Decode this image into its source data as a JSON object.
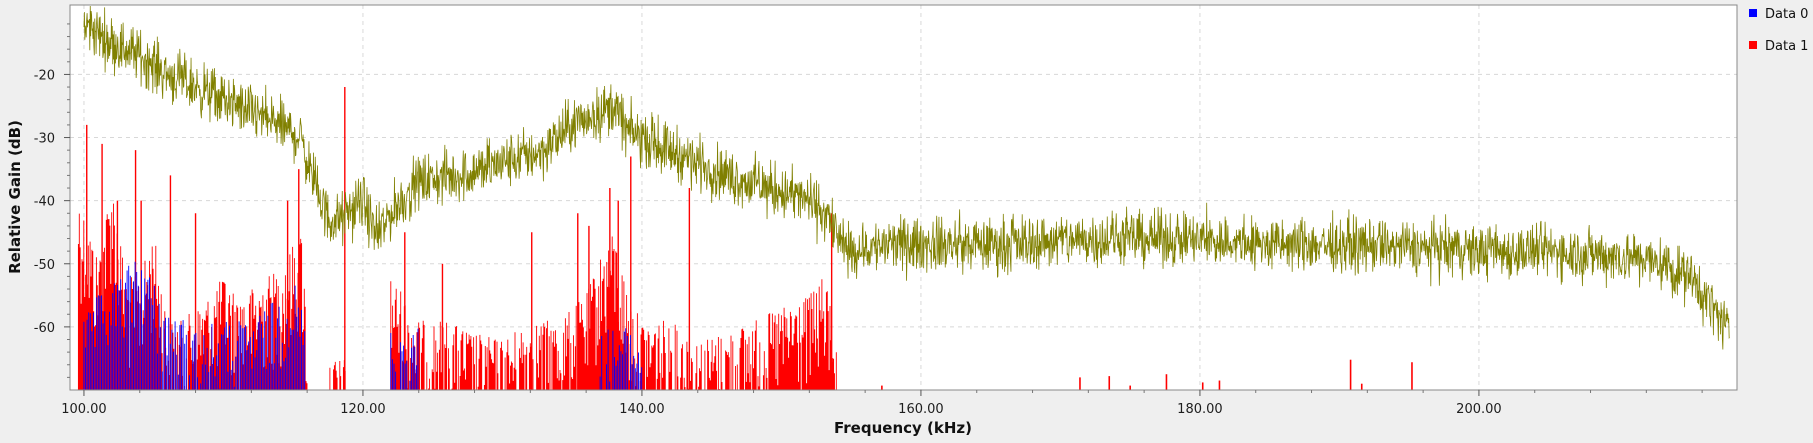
{
  "chart_data": {
    "type": "line",
    "title": "",
    "xlabel": "Frequency (kHz)",
    "ylabel": "Relative Gain (dB)",
    "xlim": [
      99.0,
      218.5
    ],
    "ylim": [
      -70.0,
      -9.0
    ],
    "x_ticks": [
      100,
      120,
      140,
      160,
      180,
      200
    ],
    "x_tick_labels": [
      "100.00",
      "120.00",
      "140.00",
      "160.00",
      "180.00",
      "200.00"
    ],
    "y_ticks": [
      -20,
      -30,
      -40,
      -50,
      -60
    ],
    "y_tick_labels": [
      "-20",
      "-30",
      "-40",
      "-50",
      "-60"
    ],
    "grid": true,
    "legend_position": "top-right, outside plot",
    "noise_amplitude_note": "traces are dense noisy spectra; envelopes below are read from the plot",
    "series": [
      {
        "name": "Data 0",
        "color": "#0000ff",
        "style": "sparse spikes above floor",
        "segments": [
          [
            100.0,
            116.0
          ],
          [
            122.0,
            124.0
          ],
          [
            137.0,
            140.0
          ]
        ],
        "envelope": {
          "x": [
            100.0,
            101.0,
            102.0,
            103.0,
            104.0,
            105.0,
            106.0,
            108.0,
            110.0,
            112.0,
            114.0,
            115.0,
            116.0
          ],
          "y": [
            -62,
            -58,
            -56,
            -54,
            -50,
            -56,
            -60,
            -63,
            -62,
            -62,
            -58,
            -55,
            -63
          ]
        }
      },
      {
        "name": "Data 1",
        "color": "#ff0000",
        "style": "dense spikes above floor",
        "segments": [
          [
            99.6,
            116.0
          ],
          [
            117.5,
            119.0
          ],
          [
            122.0,
            154.0
          ]
        ],
        "envelope": {
          "x": [
            99.6,
            100.0,
            101.0,
            102.0,
            103.0,
            104.0,
            105.0,
            106.0,
            107.0,
            108.0,
            109.0,
            110.0,
            111.0,
            112.0,
            113.0,
            114.0,
            115.0,
            115.6,
            116.0,
            117.5,
            119.0,
            122.0,
            123.0,
            124.0,
            126.0,
            128.0,
            130.0,
            132.0,
            134.0,
            135.0,
            136.0,
            137.0,
            138.0,
            139.0,
            140.0,
            142.0,
            144.0,
            146.0,
            148.0,
            150.0,
            152.0,
            153.0,
            154.0
          ],
          "y": [
            -42,
            -45,
            -52,
            -40,
            -55,
            -55,
            -48,
            -62,
            -62,
            -60,
            -58,
            -55,
            -58,
            -57,
            -55,
            -54,
            -50,
            -48,
            -62,
            -68,
            -68,
            -55,
            -58,
            -62,
            -62,
            -64,
            -65,
            -62,
            -62,
            -60,
            -58,
            -52,
            -48,
            -58,
            -62,
            -62,
            -65,
            -64,
            -62,
            -60,
            -58,
            -55,
            -62
          ]
        },
        "peaks": [
          {
            "x": 100.2,
            "y": -28
          },
          {
            "x": 101.3,
            "y": -31
          },
          {
            "x": 102.4,
            "y": -40
          },
          {
            "x": 103.7,
            "y": -32
          },
          {
            "x": 104.1,
            "y": -40
          },
          {
            "x": 106.2,
            "y": -36
          },
          {
            "x": 108.0,
            "y": -42
          },
          {
            "x": 114.6,
            "y": -40
          },
          {
            "x": 115.4,
            "y": -35
          },
          {
            "x": 118.7,
            "y": -22
          },
          {
            "x": 123.0,
            "y": -45
          },
          {
            "x": 125.7,
            "y": -50
          },
          {
            "x": 132.1,
            "y": -45
          },
          {
            "x": 135.4,
            "y": -42
          },
          {
            "x": 136.2,
            "y": -44
          },
          {
            "x": 137.7,
            "y": -38
          },
          {
            "x": 138.3,
            "y": -40
          },
          {
            "x": 139.2,
            "y": -33
          },
          {
            "x": 143.4,
            "y": -38
          },
          {
            "x": 153.6,
            "y": -42
          }
        ],
        "isolated_spikes": [
          {
            "x": 157.2,
            "y": -69.3
          },
          {
            "x": 171.4,
            "y": -68.0
          },
          {
            "x": 173.5,
            "y": -67.8
          },
          {
            "x": 175.0,
            "y": -69.3
          },
          {
            "x": 177.6,
            "y": -67.5
          },
          {
            "x": 180.2,
            "y": -68.8
          },
          {
            "x": 181.4,
            "y": -68.5
          },
          {
            "x": 190.8,
            "y": -65.2
          },
          {
            "x": 191.6,
            "y": -69.0
          },
          {
            "x": 195.2,
            "y": -65.6
          }
        ]
      },
      {
        "name": "",
        "color": "#808000",
        "style": "noisy line",
        "x": [
          100.0,
          102.0,
          104.0,
          106.0,
          108.0,
          110.0,
          112.0,
          114.0,
          115.5,
          116.5,
          117.5,
          118.5,
          120.0,
          121.0,
          122.0,
          124.0,
          127.0,
          130.0,
          133.0,
          135.0,
          137.0,
          138.0,
          139.0,
          141.0,
          143.0,
          146.0,
          149.0,
          152.0,
          153.5,
          154.5,
          158.0,
          165.0,
          172.0,
          178.0,
          185.0,
          192.0,
          200.0,
          206.0,
          211.0,
          213.0,
          215.0,
          216.5,
          218.0
        ],
        "y": [
          -12,
          -15,
          -17,
          -20,
          -22,
          -24,
          -26,
          -28,
          -30,
          -37,
          -43,
          -43,
          -40,
          -46,
          -42,
          -37,
          -36,
          -34,
          -32,
          -28,
          -26,
          -25,
          -29,
          -31,
          -33,
          -36,
          -38,
          -40,
          -43,
          -48,
          -47,
          -47,
          -46,
          -46,
          -47,
          -47,
          -48,
          -48,
          -49,
          -50,
          -52,
          -56,
          -61
        ]
      }
    ]
  }
}
